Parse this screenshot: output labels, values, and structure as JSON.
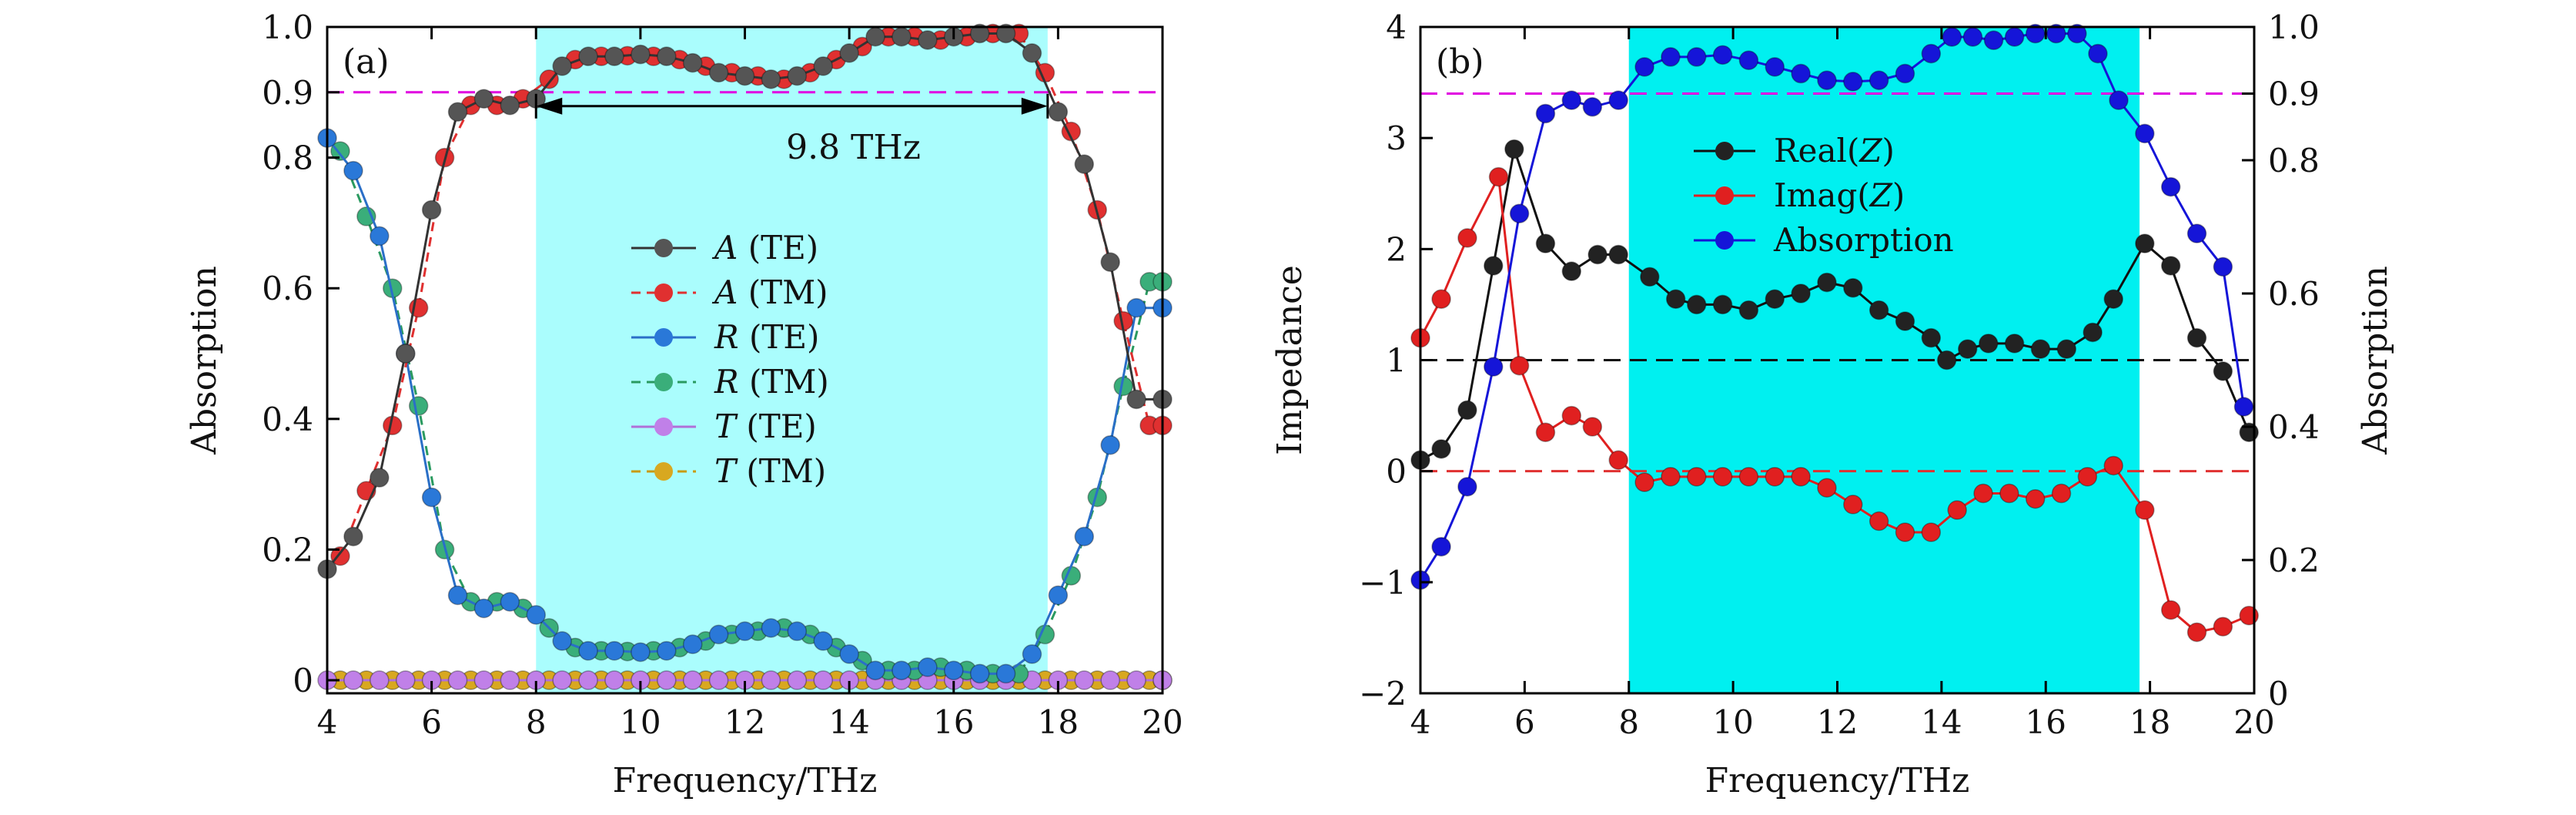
{
  "chart_data": [
    {
      "type": "line",
      "panel_label": "(a)",
      "xlabel": "Frequency/THz",
      "ylabel": "Absorption",
      "xlim": [
        4,
        20
      ],
      "ylim": [
        -0.02,
        1.0
      ],
      "xticks": [
        "4",
        "6",
        "8",
        "10",
        "12",
        "14",
        "16",
        "18",
        "20"
      ],
      "yticks": [
        {
          "v": 0,
          "label": "0"
        },
        {
          "v": 0.2,
          "label": "0.2"
        },
        {
          "v": 0.4,
          "label": "0.4"
        },
        {
          "v": 0.6,
          "label": "0.6"
        },
        {
          "v": 0.8,
          "label": "0.8"
        },
        {
          "v": 0.9,
          "label": "0.9",
          "color": "#e000e0"
        },
        {
          "v": 1.0,
          "label": "1.0"
        }
      ],
      "band": [
        8.0,
        17.8
      ],
      "band_color": "#aafdfd",
      "hlines": [
        {
          "y": 0.9,
          "color": "#e000e0"
        }
      ],
      "bandwidth_label": "9.8 THz",
      "series": [
        {
          "name": "A (TE)",
          "var": "A",
          "pol": "(TE)",
          "line": "#333333",
          "marker": "#555555",
          "dash": "",
          "x": [
            4.0,
            4.5,
            5.0,
            5.5,
            6.0,
            6.5,
            7.0,
            7.5,
            8.0,
            8.5,
            9.0,
            9.5,
            10.0,
            10.5,
            11.0,
            11.5,
            12.0,
            12.5,
            13.0,
            13.5,
            14.0,
            14.5,
            15.0,
            15.5,
            16.0,
            16.5,
            17.0,
            17.5,
            18.0,
            18.5,
            19.0,
            19.5,
            20.0
          ],
          "y": [
            0.17,
            0.22,
            0.31,
            0.5,
            0.72,
            0.87,
            0.89,
            0.88,
            0.89,
            0.94,
            0.955,
            0.955,
            0.958,
            0.955,
            0.945,
            0.93,
            0.925,
            0.92,
            0.925,
            0.94,
            0.96,
            0.985,
            0.985,
            0.98,
            0.985,
            0.99,
            0.99,
            0.96,
            0.87,
            0.79,
            0.64,
            0.43,
            0.43
          ]
        },
        {
          "name": "A (TM)",
          "var": "A",
          "pol": "(TM)",
          "line": "#e03030",
          "marker": "#e03030",
          "dash": "12,8",
          "x": [
            4.25,
            4.75,
            5.25,
            5.75,
            6.25,
            6.75,
            7.25,
            7.75,
            8.25,
            8.75,
            9.25,
            9.75,
            10.25,
            10.75,
            11.25,
            11.75,
            12.25,
            12.75,
            13.25,
            13.75,
            14.25,
            14.75,
            15.25,
            15.75,
            16.25,
            16.75,
            17.25,
            17.75,
            18.25,
            18.75,
            19.25,
            19.75,
            20.0
          ],
          "y": [
            0.19,
            0.29,
            0.39,
            0.57,
            0.8,
            0.88,
            0.88,
            0.89,
            0.92,
            0.95,
            0.955,
            0.956,
            0.955,
            0.95,
            0.94,
            0.93,
            0.925,
            0.92,
            0.93,
            0.95,
            0.97,
            0.985,
            0.985,
            0.98,
            0.985,
            0.99,
            0.99,
            0.93,
            0.84,
            0.72,
            0.55,
            0.39,
            0.39
          ]
        },
        {
          "name": "R (TE)",
          "var": "R",
          "pol": "(TE)",
          "line": "#2a6fc7",
          "marker": "#2a78d8",
          "dash": "",
          "x": [
            4.0,
            4.5,
            5.0,
            5.5,
            6.0,
            6.5,
            7.0,
            7.5,
            8.0,
            8.5,
            9.0,
            9.5,
            10.0,
            10.5,
            11.0,
            11.5,
            12.0,
            12.5,
            13.0,
            13.5,
            14.0,
            14.5,
            15.0,
            15.5,
            16.0,
            16.5,
            17.0,
            17.5,
            18.0,
            18.5,
            19.0,
            19.5,
            20.0
          ],
          "y": [
            0.83,
            0.78,
            0.68,
            0.5,
            0.28,
            0.13,
            0.11,
            0.12,
            0.1,
            0.06,
            0.045,
            0.045,
            0.043,
            0.045,
            0.055,
            0.07,
            0.075,
            0.08,
            0.075,
            0.06,
            0.04,
            0.015,
            0.015,
            0.02,
            0.015,
            0.01,
            0.01,
            0.04,
            0.13,
            0.22,
            0.36,
            0.57,
            0.57
          ]
        },
        {
          "name": "R (TM)",
          "var": "R",
          "pol": "(TM)",
          "line": "#2a9a60",
          "marker": "#3aae7a",
          "dash": "12,8",
          "x": [
            4.25,
            4.75,
            5.25,
            5.75,
            6.25,
            6.75,
            7.25,
            7.75,
            8.25,
            8.75,
            9.25,
            9.75,
            10.25,
            10.75,
            11.25,
            11.75,
            12.25,
            12.75,
            13.25,
            13.75,
            14.25,
            14.75,
            15.25,
            15.75,
            16.25,
            16.75,
            17.25,
            17.75,
            18.25,
            18.75,
            19.25,
            19.75,
            20.0
          ],
          "y": [
            0.81,
            0.71,
            0.6,
            0.42,
            0.2,
            0.12,
            0.12,
            0.11,
            0.08,
            0.05,
            0.045,
            0.044,
            0.045,
            0.05,
            0.06,
            0.07,
            0.075,
            0.08,
            0.07,
            0.05,
            0.03,
            0.015,
            0.015,
            0.02,
            0.015,
            0.01,
            0.01,
            0.07,
            0.16,
            0.28,
            0.45,
            0.61,
            0.61
          ]
        },
        {
          "name": "T (TE)",
          "var": "T",
          "pol": "(TE)",
          "line": "#b070d8",
          "marker": "#c080e8",
          "dash": "",
          "x": [
            4.0,
            4.5,
            5.0,
            5.5,
            6.0,
            6.5,
            7.0,
            7.5,
            8.0,
            8.5,
            9.0,
            9.5,
            10.0,
            10.5,
            11.0,
            11.5,
            12.0,
            12.5,
            13.0,
            13.5,
            14.0,
            14.5,
            15.0,
            15.5,
            16.0,
            16.5,
            17.0,
            17.5,
            18.0,
            18.5,
            19.0,
            19.5,
            20.0
          ],
          "y": [
            0,
            0,
            0,
            0,
            0,
            0,
            0,
            0,
            0,
            0,
            0,
            0,
            0,
            0,
            0,
            0,
            0,
            0,
            0,
            0,
            0,
            0,
            0,
            0,
            0,
            0,
            0,
            0,
            0,
            0,
            0,
            0,
            0
          ]
        },
        {
          "name": "T (TM)",
          "var": "T",
          "pol": "(TM)",
          "line": "#c89a10",
          "marker": "#d8a820",
          "dash": "12,8",
          "x": [
            4.25,
            4.75,
            5.25,
            5.75,
            6.25,
            6.75,
            7.25,
            7.75,
            8.25,
            8.75,
            9.25,
            9.75,
            10.25,
            10.75,
            11.25,
            11.75,
            12.25,
            12.75,
            13.25,
            13.75,
            14.25,
            14.75,
            15.25,
            15.75,
            16.25,
            16.75,
            17.25,
            17.75,
            18.25,
            18.75,
            19.25,
            19.75,
            20.0
          ],
          "y": [
            0,
            0,
            0,
            0,
            0,
            0,
            0,
            0,
            0,
            0,
            0,
            0,
            0,
            0,
            0,
            0,
            0,
            0,
            0,
            0,
            0,
            0,
            0,
            0,
            0,
            0,
            0,
            0,
            0,
            0,
            0,
            0,
            0
          ]
        }
      ]
    },
    {
      "type": "line",
      "panel_label": "(b)",
      "xlabel": "Frequency/THz",
      "ylabel": "Impedance",
      "y2label": "Absorption",
      "xlim": [
        4,
        20
      ],
      "ylim": [
        -2,
        4
      ],
      "y2lim": [
        0,
        1.0
      ],
      "xticks": [
        "4",
        "6",
        "8",
        "10",
        "12",
        "14",
        "16",
        "18",
        "20"
      ],
      "yticks": [
        {
          "v": -2,
          "label": "−2"
        },
        {
          "v": -1,
          "label": "−1"
        },
        {
          "v": 0,
          "label": "0"
        },
        {
          "v": 1,
          "label": "1"
        },
        {
          "v": 2,
          "label": "2"
        },
        {
          "v": 3,
          "label": "3"
        },
        {
          "v": 4,
          "label": "4"
        }
      ],
      "y2ticks": [
        {
          "v": 0,
          "label": "0",
          "color": "#1515d8"
        },
        {
          "v": 0.2,
          "label": "0.2",
          "color": "#1515d8"
        },
        {
          "v": 0.4,
          "label": "0.4",
          "color": "#1515d8"
        },
        {
          "v": 0.6,
          "label": "0.6",
          "color": "#1515d8"
        },
        {
          "v": 0.8,
          "label": "0.8",
          "color": "#1515d8"
        },
        {
          "v": 0.9,
          "label": "0.9",
          "color": "#e000e0"
        },
        {
          "v": 1.0,
          "label": "1.0",
          "color": "#1515d8"
        }
      ],
      "band": [
        8.0,
        17.8
      ],
      "band_color": "#00f0f0",
      "hlines": [
        {
          "y": 1,
          "color": "#111111"
        },
        {
          "y": 0,
          "color": "#e03030"
        },
        {
          "y2": 0.9,
          "color": "#e000e0"
        }
      ],
      "series": [
        {
          "name": "Real(Z)",
          "var": "Z",
          "prefix": "Real(",
          "suffix": ")",
          "line": "#111111",
          "marker": "#222222",
          "axis": "left",
          "x": [
            4.0,
            4.4,
            4.9,
            5.4,
            5.8,
            6.4,
            6.9,
            7.4,
            7.8,
            8.4,
            8.9,
            9.3,
            9.8,
            10.3,
            10.8,
            11.3,
            11.8,
            12.3,
            12.8,
            13.3,
            13.8,
            14.1,
            14.5,
            14.9,
            15.4,
            15.9,
            16.4,
            16.9,
            17.3,
            17.9,
            18.4,
            18.9,
            19.4,
            19.9
          ],
          "y": [
            0.1,
            0.2,
            0.55,
            1.85,
            2.9,
            2.05,
            1.8,
            1.95,
            1.95,
            1.75,
            1.55,
            1.5,
            1.5,
            1.45,
            1.55,
            1.6,
            1.7,
            1.65,
            1.45,
            1.35,
            1.2,
            1.0,
            1.1,
            1.15,
            1.15,
            1.1,
            1.1,
            1.25,
            1.55,
            2.05,
            1.85,
            1.2,
            0.9,
            0.35
          ]
        },
        {
          "name": "Imag(Z)",
          "var": "Z",
          "prefix": "Imag(",
          "suffix": ")",
          "line": "#e02020",
          "marker": "#e02020",
          "axis": "left",
          "x": [
            4.0,
            4.4,
            4.9,
            5.5,
            5.9,
            6.4,
            6.9,
            7.3,
            7.8,
            8.3,
            8.8,
            9.3,
            9.8,
            10.3,
            10.8,
            11.3,
            11.8,
            12.3,
            12.8,
            13.3,
            13.8,
            14.3,
            14.8,
            15.3,
            15.8,
            16.3,
            16.8,
            17.3,
            17.9,
            18.4,
            18.9,
            19.4,
            19.9
          ],
          "y": [
            1.2,
            1.55,
            2.1,
            2.65,
            0.95,
            0.35,
            0.5,
            0.4,
            0.1,
            -0.1,
            -0.05,
            -0.05,
            -0.05,
            -0.05,
            -0.05,
            -0.05,
            -0.15,
            -0.3,
            -0.45,
            -0.55,
            -0.55,
            -0.35,
            -0.2,
            -0.2,
            -0.25,
            -0.2,
            -0.05,
            0.05,
            -0.35,
            -1.25,
            -1.45,
            -1.4,
            -1.3
          ]
        },
        {
          "name": "Absorption",
          "var": "",
          "prefix": "Absorption",
          "suffix": "",
          "line": "#1515d8",
          "marker": "#1515d8",
          "axis": "right",
          "x": [
            4.0,
            4.4,
            4.9,
            5.4,
            5.9,
            6.4,
            6.9,
            7.3,
            7.8,
            8.3,
            8.8,
            9.3,
            9.8,
            10.3,
            10.8,
            11.3,
            11.8,
            12.3,
            12.8,
            13.3,
            13.8,
            14.2,
            14.6,
            15.0,
            15.4,
            15.8,
            16.2,
            16.6,
            17.0,
            17.4,
            17.9,
            18.4,
            18.9,
            19.4,
            19.8
          ],
          "y": [
            0.17,
            0.22,
            0.31,
            0.49,
            0.72,
            0.87,
            0.89,
            0.88,
            0.89,
            0.94,
            0.955,
            0.955,
            0.958,
            0.95,
            0.94,
            0.93,
            0.92,
            0.918,
            0.92,
            0.93,
            0.96,
            0.985,
            0.985,
            0.98,
            0.985,
            0.99,
            0.99,
            0.99,
            0.96,
            0.89,
            0.84,
            0.76,
            0.69,
            0.64,
            0.43
          ]
        }
      ]
    }
  ]
}
